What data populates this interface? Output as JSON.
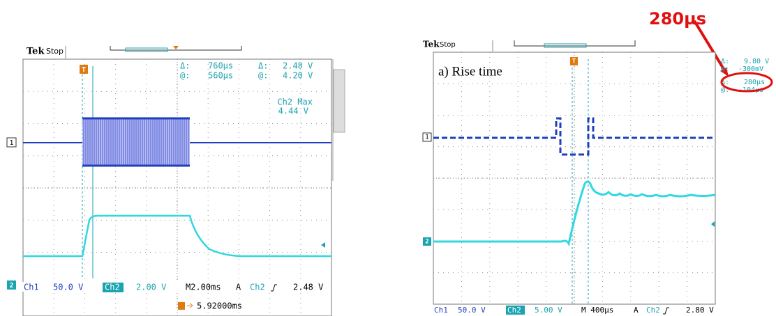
{
  "left_scope": {
    "brand": "Tek",
    "status": "Stop",
    "trigger_marker": "T",
    "cursor_readout": {
      "delta_time_label": "Δ:",
      "delta_time": "760µs",
      "delta_volt_label": "Δ:",
      "delta_volt": "2.48 V",
      "at_time_label": "@:",
      "at_time": "560µs",
      "at_volt_label": "@:",
      "at_volt": "4.20 V"
    },
    "measurement": {
      "label": "Ch2 Max",
      "value": "4.44 V"
    },
    "channel_markers": [
      "1",
      "2"
    ],
    "status_bar": {
      "ch1": "Ch1",
      "ch1_scale": "50.0 V",
      "ch2": "Ch2",
      "ch2_scale": "2.00 V",
      "timebase": "M2.00ms",
      "trigger_mode": "A",
      "trigger_source": "Ch2",
      "trigger_level": "2.48 V",
      "trigger_position": "5.92000ms"
    }
  },
  "right_scope": {
    "annotation": "280µs",
    "brand": "Tek",
    "status": "Stop",
    "trigger_marker": "T",
    "caption": "a) Rise time",
    "cursor_readout": {
      "delta_volt_label": "Δ:",
      "delta_volt": "9.80 V",
      "at_volt_label": "@:",
      "at_volt": "-300mV",
      "delta_time_label": "Δ:",
      "delta_time": "280µs",
      "at_time_label": "@:",
      "at_time": "-104µs"
    },
    "channel_markers": [
      "1",
      "2"
    ],
    "status_bar": {
      "ch1": "Ch1",
      "ch1_scale": "50.0 V",
      "ch2": "Ch2",
      "ch2_scale": "5.00 V",
      "timebase": "M 400µs",
      "trigger_mode": "A",
      "trigger_source": "Ch2",
      "trigger_level": "2.80 V"
    }
  }
}
